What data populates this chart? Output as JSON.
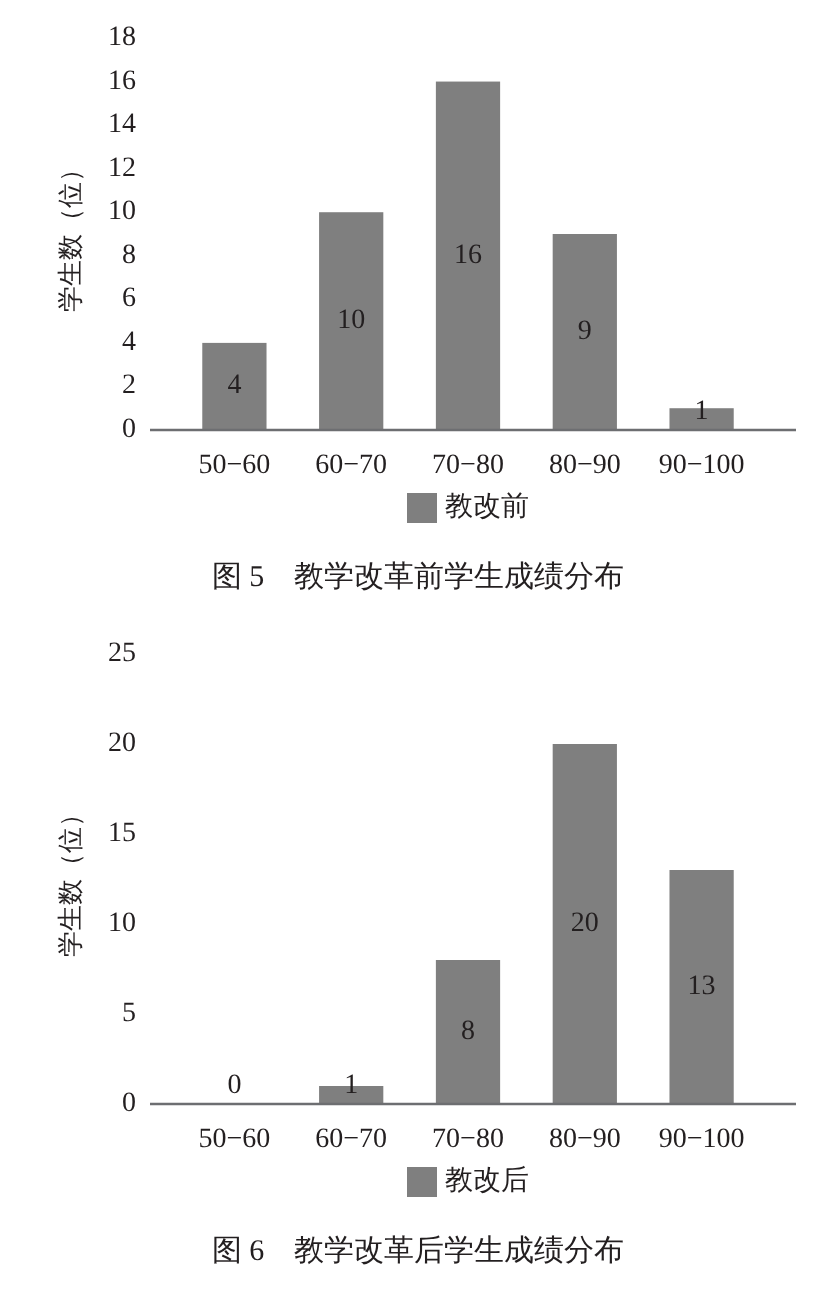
{
  "chart_data": [
    {
      "type": "bar",
      "title": "图 5　教学改革前学生成绩分布",
      "ylabel": "学生数（位）",
      "categories": [
        "50−60",
        "60−70",
        "70−80",
        "80−90",
        "90−100"
      ],
      "series": [
        {
          "name": "教改前",
          "color": "#7f7f7f",
          "values": [
            4,
            10,
            16,
            9,
            1
          ]
        }
      ],
      "ylim": [
        0,
        18
      ],
      "yticks": [
        0,
        2,
        4,
        6,
        8,
        10,
        12,
        14,
        16,
        18
      ],
      "data_labels": true,
      "legend": "bottom"
    },
    {
      "type": "bar",
      "title": "图 6　教学改革后学生成绩分布",
      "ylabel": "学生数（位）",
      "categories": [
        "50−60",
        "60−70",
        "70−80",
        "80−90",
        "90−100"
      ],
      "series": [
        {
          "name": "教改后",
          "color": "#7f7f7f",
          "values": [
            0,
            1,
            8,
            20,
            13
          ]
        }
      ],
      "ylim": [
        0,
        25
      ],
      "yticks": [
        0,
        5,
        10,
        15,
        20,
        25
      ],
      "data_labels": true,
      "legend": "bottom"
    }
  ]
}
